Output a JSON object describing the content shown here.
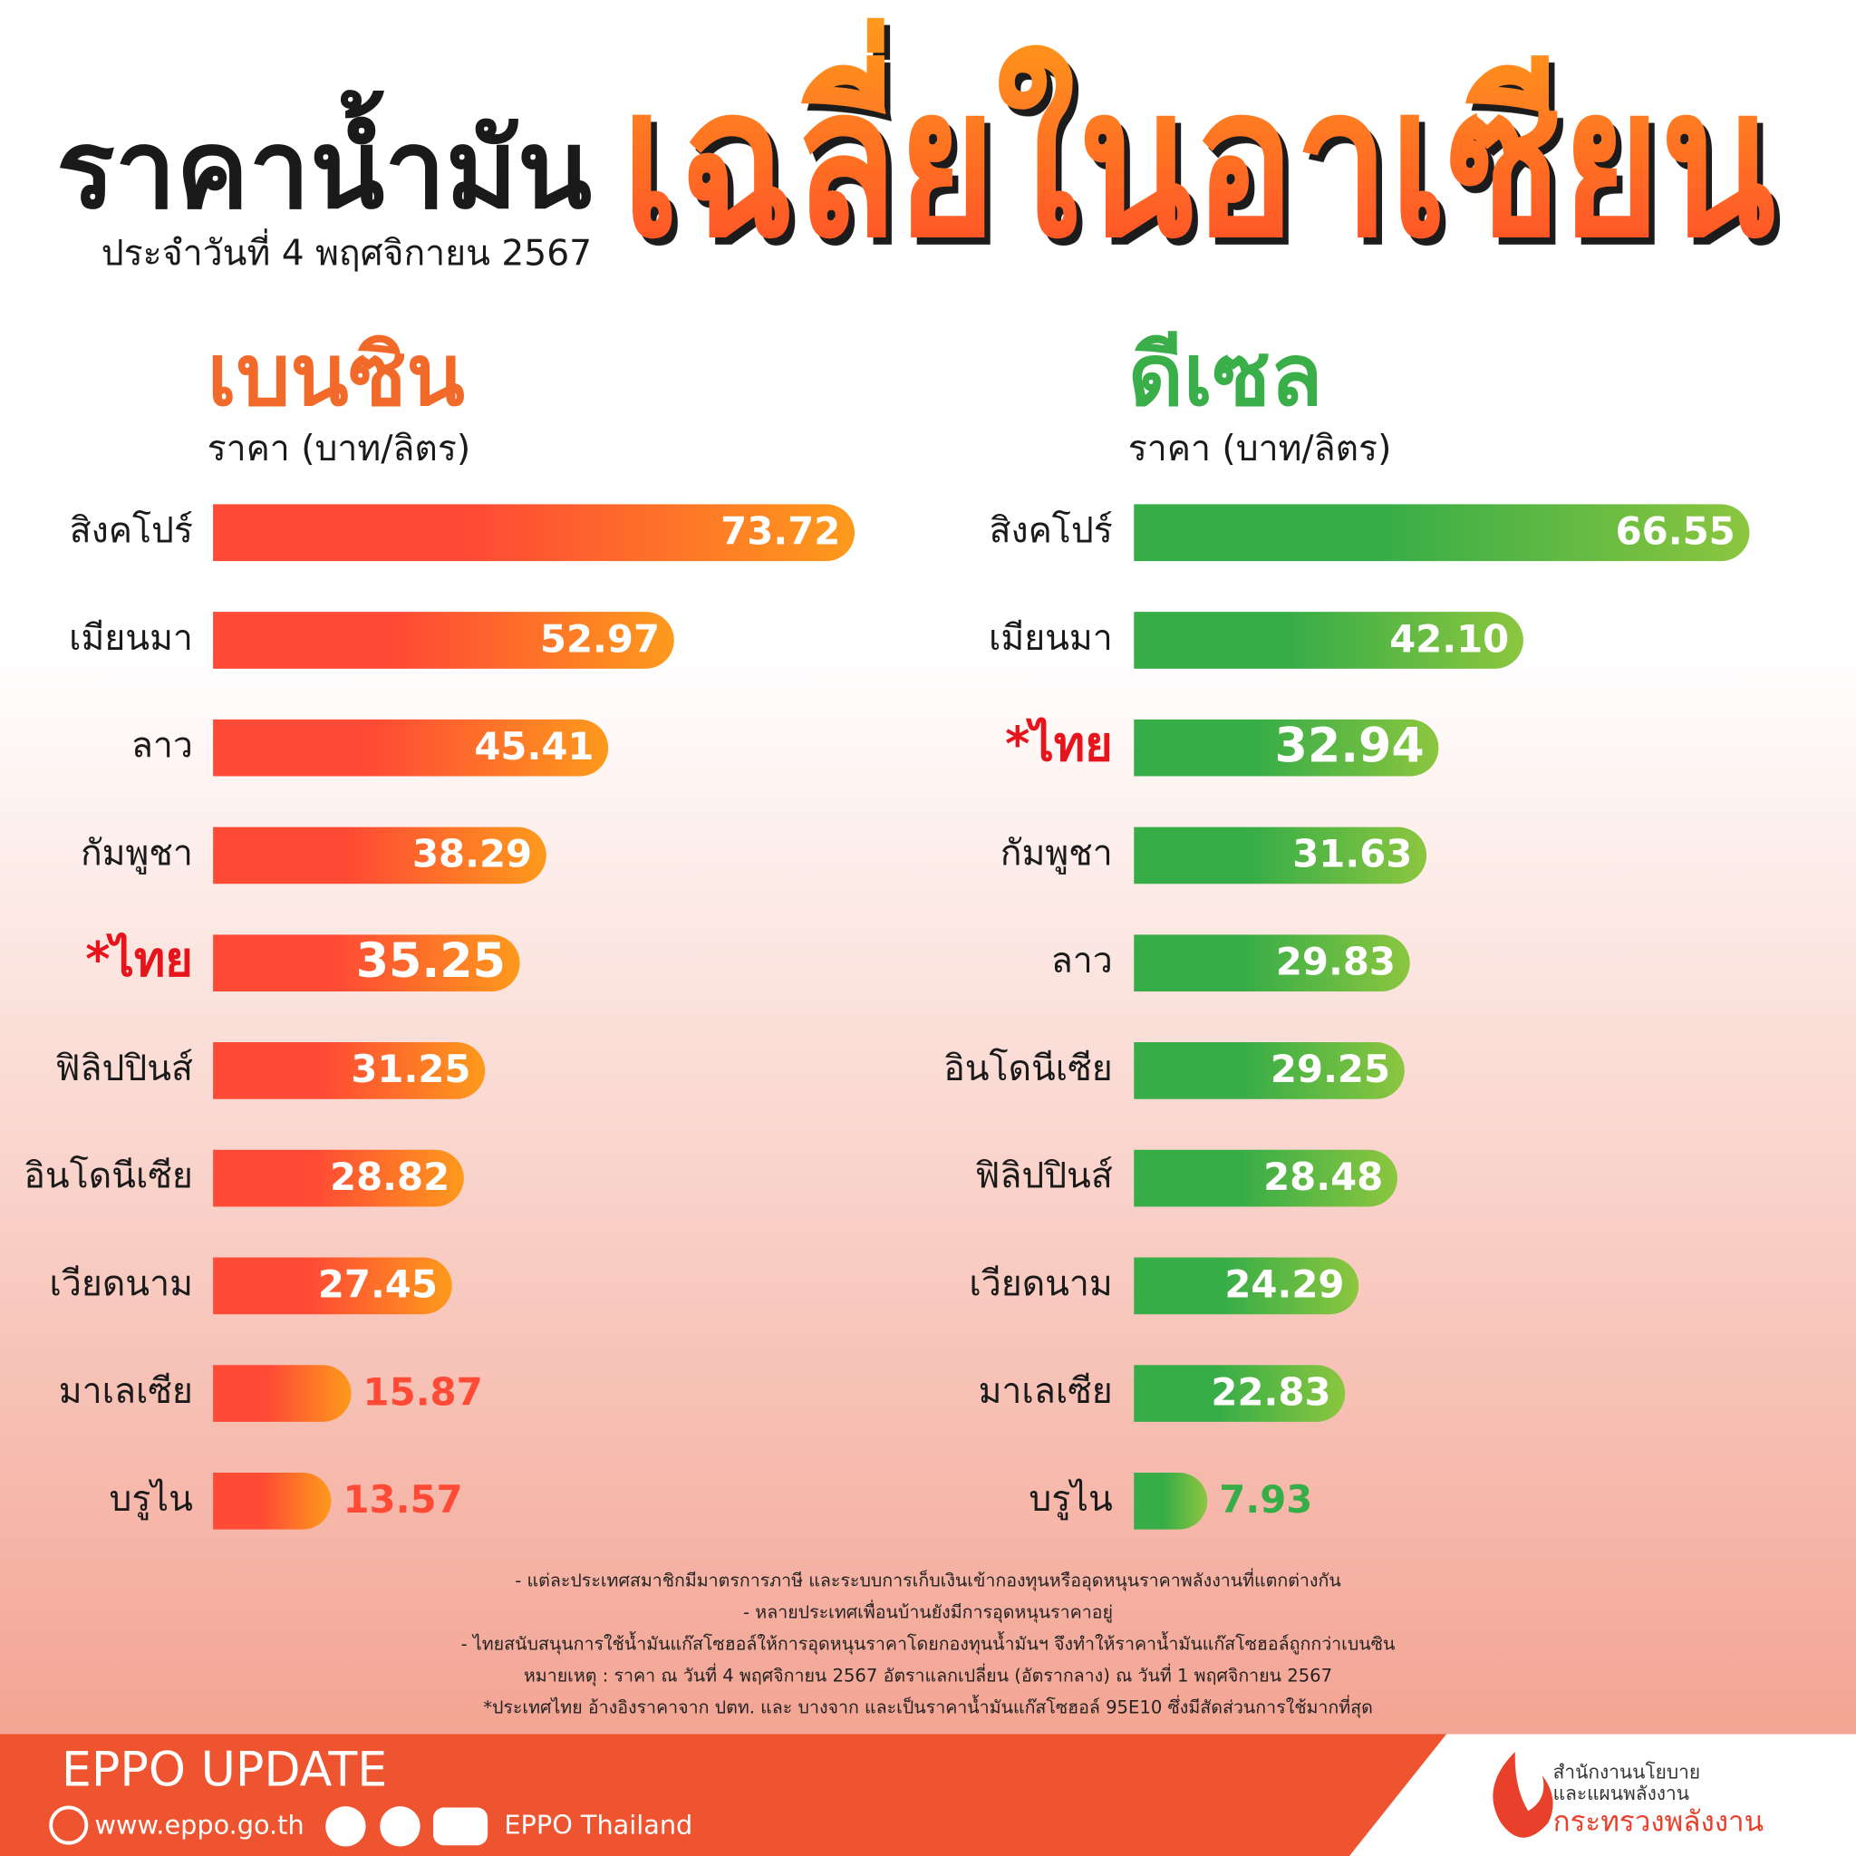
{
  "header": {
    "title_1": "ราคาน้ำมัน",
    "title_2": "เฉลี่ยในอาเซียน",
    "subtitle": "ประจำวันที่ 4 พฤศจิกายน 2567"
  },
  "chart_data": [
    {
      "type": "bar",
      "orientation": "horizontal",
      "title": "เบนซิน",
      "axis_label": "ราคา (บาท/ลิตร)",
      "categories": [
        "สิงคโปร์",
        "เมียนมา",
        "ลาว",
        "กัมพูชา",
        "*ไทย",
        "ฟิลิปปินส์",
        "อินโดนีเซีย",
        "เวียดนาม",
        "มาเลเซีย",
        "บรูไน"
      ],
      "values": [
        73.72,
        52.97,
        45.41,
        38.29,
        35.25,
        31.25,
        28.82,
        27.45,
        15.87,
        13.57
      ],
      "value_labels": [
        "73.72",
        "52.97",
        "45.41",
        "38.29",
        "35.25",
        "31.25",
        "28.82",
        "27.45",
        "15.87",
        "13.57"
      ],
      "color": "#ff4a35",
      "color_end": "#fd9a1c",
      "title_color": "#f26a2a",
      "highlight_index": 4,
      "highlight_color": "#e8141b"
    },
    {
      "type": "bar",
      "orientation": "horizontal",
      "title": "ดีเซล",
      "axis_label": "ราคา (บาท/ลิตร)",
      "categories": [
        "สิงคโปร์",
        "เมียนมา",
        "*ไทย",
        "กัมพูชา",
        "ลาว",
        "อินโดนีเซีย",
        "ฟิลิปปินส์",
        "เวียดนาม",
        "มาเลเซีย",
        "บรูไน"
      ],
      "values": [
        66.55,
        42.1,
        32.94,
        31.63,
        29.83,
        29.25,
        28.48,
        24.29,
        22.83,
        7.93
      ],
      "value_labels": [
        "66.55",
        "42.10",
        "32.94",
        "31.63",
        "29.83",
        "29.25",
        "28.48",
        "24.29",
        "22.83",
        "7.93"
      ],
      "color": "#37ad47",
      "color_end": "#8cc63f",
      "title_color": "#3aae49",
      "highlight_index": 2,
      "highlight_color": "#e8141b"
    }
  ],
  "notes": [
    "- แต่ละประเทศสมาชิกมีมาตรการภาษี และระบบการเก็บเงินเข้ากองทุนหรืออุดหนุนราคาพลังงานที่แตกต่างกัน",
    "- หลายประเทศเพื่อนบ้านยังมีการอุดหนุนราคาอยู่",
    "- ไทยสนับสนุนการใช้น้ำมันแก๊สโซฮอล์ให้การอุดหนุนราคาโดยกองทุนน้ำมันฯ จึงทำให้ราคาน้ำมันแก๊สโซฮอล์ถูกกว่าเบนซิน",
    "หมายเหตุ :   ราคา ณ วันที่ 4 พฤศจิกายน 2567 อัตราแลกเปลี่ยน (อัตรากลาง) ณ วันที่ 1 พฤศจิกายน 2567",
    "*ประเทศไทย อ้างอิงราคาจาก ปตท. และ บางจาก และเป็นราคาน้ำมันแก๊สโซฮอล์ 95E10 ซึ่งมีสัดส่วนการใช้มากที่สุด"
  ],
  "footer": {
    "brand": "EPPO UPDATE",
    "website": "www.eppo.go.th",
    "social": "EPPO Thailand",
    "org": [
      "สำนักงานนโยบาย",
      "และแผนพลังงาน",
      "กระทรวงพลังงาน"
    ]
  }
}
